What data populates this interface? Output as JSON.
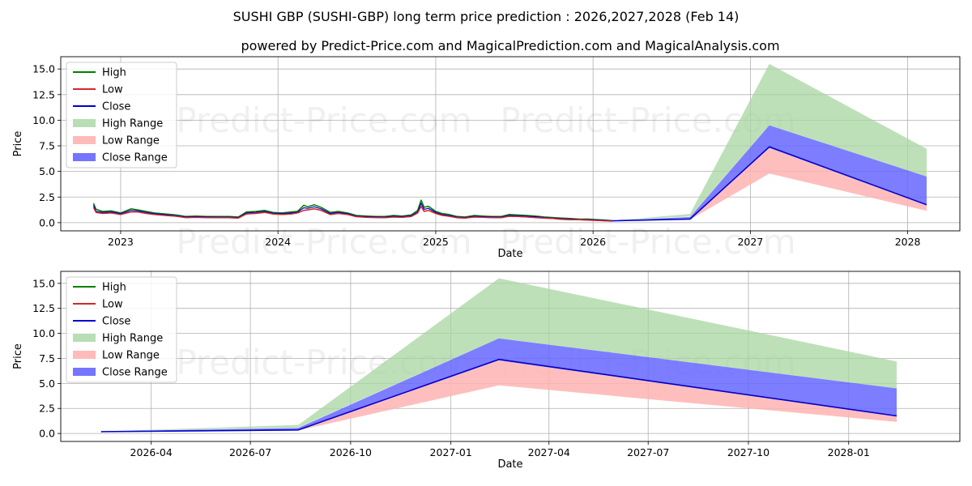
{
  "title": "SUSHI GBP (SUSHI-GBP) long term price prediction : 2026,2027,2028 (Feb 14)",
  "subtitle": "powered by Predict-Price.com and MagicalPrediction.com and MagicalAnalysis.com",
  "watermark": "Predict-Price.com",
  "colors": {
    "high": "#008000",
    "low": "#d62728",
    "close": "#0000cc",
    "high_range": "#a8d5a2",
    "low_range": "#ffb3b3",
    "close_range": "#6666ff",
    "grid": "#b0b0b0"
  },
  "legend": [
    "High",
    "Low",
    "Close",
    "High Range",
    "Low Range",
    "Close Range"
  ],
  "chart_data": [
    {
      "type": "line",
      "name": "full-history",
      "xlabel": "Date",
      "ylabel": "Price",
      "x_range": [
        "2022-08-15",
        "2028-05-01"
      ],
      "ylim": [
        -0.8,
        16.2
      ],
      "x_ticks": [
        {
          "date": "2023-01-01",
          "label": "2023"
        },
        {
          "date": "2024-01-01",
          "label": "2024"
        },
        {
          "date": "2025-01-01",
          "label": "2025"
        },
        {
          "date": "2026-01-01",
          "label": "2026"
        },
        {
          "date": "2027-01-01",
          "label": "2027"
        },
        {
          "date": "2028-01-01",
          "label": "2028"
        }
      ],
      "y_ticks": [
        0.0,
        2.5,
        5.0,
        7.5,
        10.0,
        12.5,
        15.0
      ],
      "history": {
        "dates": [
          "2022-10-30",
          "2022-11-05",
          "2022-11-20",
          "2022-12-10",
          "2023-01-01",
          "2023-01-25",
          "2023-02-10",
          "2023-03-01",
          "2023-03-20",
          "2023-04-15",
          "2023-05-10",
          "2023-06-01",
          "2023-06-25",
          "2023-07-20",
          "2023-08-15",
          "2023-09-10",
          "2023-10-01",
          "2023-10-20",
          "2023-11-10",
          "2023-12-01",
          "2023-12-20",
          "2024-01-10",
          "2024-02-01",
          "2024-02-15",
          "2024-03-01",
          "2024-03-10",
          "2024-03-25",
          "2024-04-10",
          "2024-05-01",
          "2024-05-20",
          "2024-06-10",
          "2024-07-01",
          "2024-07-25",
          "2024-08-15",
          "2024-09-05",
          "2024-09-25",
          "2024-10-15",
          "2024-11-05",
          "2024-11-20",
          "2024-11-28",
          "2024-12-05",
          "2024-12-15",
          "2025-01-01",
          "2025-01-15",
          "2025-02-01",
          "2025-02-20",
          "2025-03-10",
          "2025-04-01",
          "2025-04-20",
          "2025-05-10",
          "2025-06-01",
          "2025-06-20",
          "2025-07-10",
          "2025-08-01",
          "2025-08-20",
          "2025-09-10",
          "2025-10-01",
          "2025-10-20",
          "2025-11-10",
          "2025-12-01",
          "2025-12-20",
          "2026-01-10",
          "2026-01-30",
          "2026-02-14"
        ],
        "high": [
          1.9,
          1.3,
          1.1,
          1.15,
          0.95,
          1.35,
          1.25,
          1.1,
          0.95,
          0.85,
          0.75,
          0.6,
          0.65,
          0.6,
          0.6,
          0.6,
          0.55,
          1.05,
          1.1,
          1.2,
          1.0,
          0.95,
          1.05,
          1.1,
          1.7,
          1.55,
          1.75,
          1.5,
          1.0,
          1.1,
          0.95,
          0.7,
          0.65,
          0.6,
          0.6,
          0.7,
          0.65,
          0.75,
          1.2,
          2.2,
          1.5,
          1.6,
          1.1,
          0.9,
          0.8,
          0.6,
          0.55,
          0.7,
          0.65,
          0.6,
          0.6,
          0.8,
          0.75,
          0.7,
          0.65,
          0.55,
          0.5,
          0.45,
          0.4,
          0.35,
          0.35,
          0.3,
          0.25,
          0.2
        ],
        "low": [
          1.5,
          1.0,
          0.9,
          0.95,
          0.8,
          1.05,
          1.05,
          0.9,
          0.8,
          0.7,
          0.62,
          0.5,
          0.52,
          0.5,
          0.48,
          0.48,
          0.45,
          0.85,
          0.9,
          1.0,
          0.85,
          0.8,
          0.85,
          0.95,
          1.2,
          1.25,
          1.35,
          1.2,
          0.8,
          0.9,
          0.8,
          0.58,
          0.52,
          0.5,
          0.48,
          0.55,
          0.52,
          0.6,
          0.95,
          1.6,
          1.1,
          1.2,
          0.9,
          0.72,
          0.62,
          0.48,
          0.45,
          0.55,
          0.52,
          0.5,
          0.48,
          0.62,
          0.6,
          0.55,
          0.5,
          0.45,
          0.4,
          0.32,
          0.3,
          0.28,
          0.25,
          0.22,
          0.18,
          0.15
        ],
        "close": [
          1.7,
          1.1,
          1.0,
          1.05,
          0.88,
          1.2,
          1.15,
          1.0,
          0.88,
          0.78,
          0.68,
          0.55,
          0.58,
          0.55,
          0.54,
          0.54,
          0.5,
          0.95,
          1.0,
          1.1,
          0.92,
          0.88,
          0.95,
          1.02,
          1.45,
          1.4,
          1.55,
          1.35,
          0.9,
          1.0,
          0.88,
          0.64,
          0.58,
          0.55,
          0.54,
          0.62,
          0.58,
          0.68,
          1.05,
          1.9,
          1.3,
          1.4,
          1.0,
          0.8,
          0.7,
          0.54,
          0.5,
          0.62,
          0.58,
          0.55,
          0.54,
          0.7,
          0.68,
          0.62,
          0.58,
          0.5,
          0.45,
          0.38,
          0.35,
          0.3,
          0.3,
          0.26,
          0.22,
          0.18
        ]
      },
      "prediction": {
        "dates": [
          "2026-02-14",
          "2026-08-14",
          "2027-02-14",
          "2028-02-14"
        ],
        "high_range": {
          "upper": [
            0.2,
            0.85,
            15.5,
            7.2
          ],
          "lower": [
            0.2,
            0.6,
            9.5,
            4.5
          ]
        },
        "close_range": {
          "upper": [
            0.2,
            0.55,
            9.5,
            4.5
          ],
          "lower": [
            0.18,
            0.35,
            7.3,
            1.7
          ]
        },
        "low_range": {
          "upper": [
            0.18,
            0.35,
            7.3,
            1.7
          ],
          "lower": [
            0.15,
            0.3,
            4.8,
            1.15
          ]
        },
        "close": [
          0.18,
          0.35,
          7.4,
          1.75
        ]
      }
    },
    {
      "type": "line",
      "name": "prediction-zoom",
      "xlabel": "Date",
      "ylabel": "Price",
      "x_range": [
        "2026-01-08",
        "2028-04-12"
      ],
      "ylim": [
        -0.8,
        16.2
      ],
      "x_ticks": [
        {
          "date": "2026-04-01",
          "label": "2026-04"
        },
        {
          "date": "2026-07-01",
          "label": "2026-07"
        },
        {
          "date": "2026-10-01",
          "label": "2026-10"
        },
        {
          "date": "2027-01-01",
          "label": "2027-01"
        },
        {
          "date": "2027-04-01",
          "label": "2027-04"
        },
        {
          "date": "2027-07-01",
          "label": "2027-07"
        },
        {
          "date": "2027-10-01",
          "label": "2027-10"
        },
        {
          "date": "2028-01-01",
          "label": "2028-01"
        }
      ],
      "y_ticks": [
        0.0,
        2.5,
        5.0,
        7.5,
        10.0,
        12.5,
        15.0
      ],
      "prediction": {
        "dates": [
          "2026-02-14",
          "2026-08-14",
          "2027-02-14",
          "2028-02-14"
        ],
        "high_range": {
          "upper": [
            0.2,
            0.85,
            15.5,
            7.2
          ],
          "lower": [
            0.2,
            0.6,
            9.5,
            4.5
          ]
        },
        "close_range": {
          "upper": [
            0.2,
            0.55,
            9.5,
            4.5
          ],
          "lower": [
            0.18,
            0.35,
            7.3,
            1.7
          ]
        },
        "low_range": {
          "upper": [
            0.18,
            0.35,
            7.3,
            1.7
          ],
          "lower": [
            0.15,
            0.3,
            4.8,
            1.15
          ]
        },
        "close": [
          0.18,
          0.35,
          7.4,
          1.75
        ]
      }
    }
  ]
}
